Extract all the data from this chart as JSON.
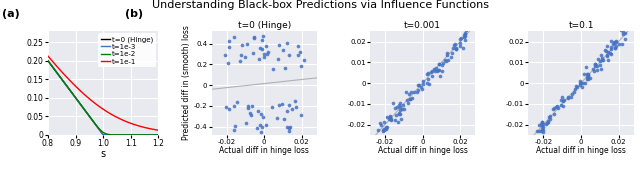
{
  "title": "Understanding Black-box Predictions via Influence Functions",
  "title_fontsize": 8,
  "panel_a_label": "(a)",
  "panel_b_label": "(b)",
  "curve_t0_label": "t=0 (Hinge)",
  "curve_t1_label": "t=1e-3",
  "curve_t2_label": "t=1e-2",
  "curve_t3_label": "t=1e-1",
  "curve_colors": [
    "black",
    "#4472c4",
    "green",
    "red"
  ],
  "s_min": 0.8,
  "s_max": 1.2,
  "xlabel_a": "s",
  "ylim_a": [
    0,
    0.28
  ],
  "yticks_a": [
    0,
    0.05,
    0.1,
    0.15,
    0.2,
    0.25
  ],
  "xticks_a": [
    0.8,
    0.9,
    1.0,
    1.1,
    1.2
  ],
  "scatter_titles": [
    "t=0 (Hinge)",
    "t=0.001",
    "t=0.1"
  ],
  "scatter_color": "#4472c4",
  "scatter_size": 7,
  "scatter_alpha": 0.85,
  "scatter_xlim": [
    -0.028,
    0.028
  ],
  "scatter_ylim_0": [
    -0.48,
    0.52
  ],
  "scatter_ylim_1": [
    -0.025,
    0.025
  ],
  "scatter_ylim_2": [
    -0.025,
    0.025
  ],
  "xlabel_scatter": "Actual diff in hinge loss",
  "ylabel_scatter": "Predicted diff in (smooth) loss",
  "xticks_scatter": [
    -0.02,
    0,
    0.02
  ],
  "yticks_scatter_0": [
    -0.4,
    -0.2,
    0,
    0.2,
    0.4
  ],
  "yticks_scatter_1": [
    -0.02,
    -0.01,
    0,
    0.01,
    0.02
  ],
  "yticks_scatter_2": [
    -0.02,
    -0.01,
    0,
    0.01,
    0.02
  ],
  "bg_color": "#e8eaf0",
  "grid_color": "white"
}
